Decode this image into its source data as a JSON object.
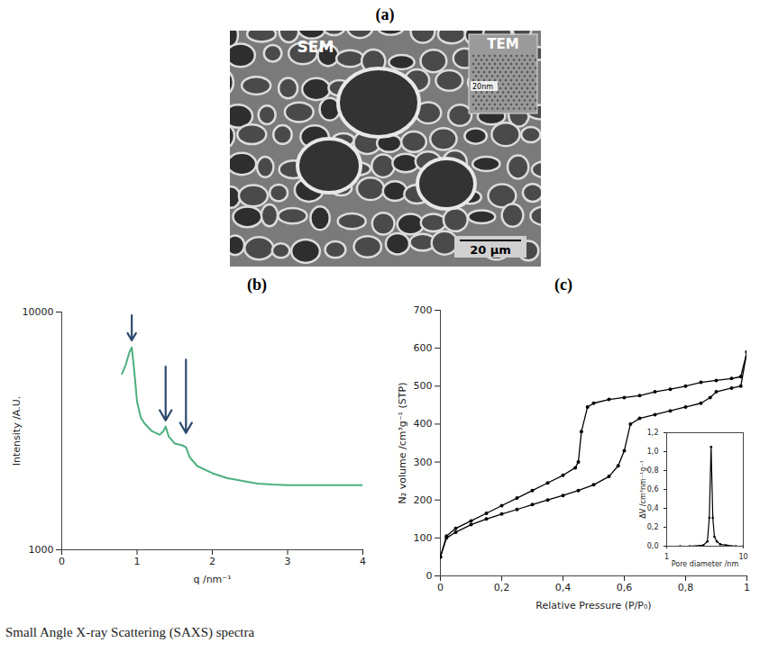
{
  "figure": {
    "image_panel": {
      "panel_label": "(a)",
      "sem_label": "SEM",
      "tem_label": "TEM",
      "scale_bar": "20 μm",
      "tem_scale_bar": "20nm"
    },
    "caption": "Small Angle X-ray Scattering (SAXS) spectra"
  },
  "chart_data": [
    {
      "type": "line",
      "panel_label": "(b)",
      "x_label": "q /nm⁻¹",
      "y_label": "Intensity /A.U.",
      "log": "y",
      "color": "#4caf7d",
      "line_style": "solid",
      "x": [
        0.8,
        0.85,
        0.9,
        0.93,
        0.96,
        1.0,
        1.05,
        1.1,
        1.2,
        1.3,
        1.35,
        1.38,
        1.42,
        1.5,
        1.6,
        1.65,
        1.7,
        1.8,
        2.0,
        2.2,
        2.4,
        2.6,
        2.8,
        3.0,
        3.5,
        4.0
      ],
      "values": [
        5500,
        6000,
        6800,
        7100,
        5800,
        4200,
        3600,
        3400,
        3150,
        3050,
        3150,
        3300,
        3000,
        2800,
        2750,
        2700,
        2450,
        2250,
        2100,
        2000,
        1950,
        1900,
        1880,
        1870,
        1870,
        1870
      ],
      "arrows": [
        {
          "x": 0.93,
          "y_start": 9700,
          "y_end": 7600
        },
        {
          "x": 1.38,
          "y_start": 5900,
          "y_end": 3500
        },
        {
          "x": 1.65,
          "y_start": 6300,
          "y_end": 3100
        }
      ],
      "xlim": [
        0,
        4
      ],
      "xticks": [
        0,
        1,
        2,
        3,
        4
      ],
      "ylim": [
        1000,
        10000
      ],
      "yticks": [
        1000,
        10000
      ],
      "grid": false
    },
    {
      "type": "line",
      "panel_label": "(c)",
      "x_label": "Relative Pressure (P/P₀)",
      "y_label": "N₂ volume /cm³g⁻¹ (STP)",
      "series": [
        {
          "color": "#000000",
          "marker": "circle",
          "line_style": "solid",
          "x": [
            0,
            0.02,
            0.05,
            0.1,
            0.15,
            0.2,
            0.25,
            0.3,
            0.35,
            0.4,
            0.45,
            0.5,
            0.55,
            0.58,
            0.6,
            0.62,
            0.65,
            0.7,
            0.75,
            0.8,
            0.85,
            0.88,
            0.9,
            0.95,
            0.98,
            1.0
          ],
          "values": [
            50,
            100,
            115,
            135,
            150,
            163,
            175,
            188,
            200,
            212,
            225,
            240,
            262,
            290,
            330,
            400,
            415,
            425,
            435,
            445,
            455,
            470,
            485,
            495,
            500,
            590
          ]
        },
        {
          "color": "#000000",
          "marker": "circle",
          "line_style": "solid",
          "x": [
            1.0,
            0.98,
            0.95,
            0.9,
            0.85,
            0.8,
            0.75,
            0.7,
            0.65,
            0.6,
            0.55,
            0.5,
            0.48,
            0.46,
            0.45,
            0.44,
            0.4,
            0.35,
            0.3,
            0.25,
            0.2,
            0.15,
            0.1,
            0.05,
            0.02,
            0
          ],
          "values": [
            590,
            525,
            520,
            515,
            510,
            500,
            492,
            485,
            475,
            470,
            465,
            455,
            445,
            380,
            300,
            285,
            265,
            245,
            225,
            205,
            185,
            165,
            145,
            125,
            105,
            50
          ]
        }
      ],
      "xlim": [
        0,
        1
      ],
      "xticks": [
        0,
        {
          "value": 0.2,
          "label": "0,2"
        },
        {
          "value": 0.4,
          "label": "0,4"
        },
        {
          "value": 0.6,
          "label": "0,6"
        },
        {
          "value": 0.8,
          "label": "0,8"
        },
        1
      ],
      "ylim": [
        0,
        700
      ],
      "yticks": [
        0,
        100,
        200,
        300,
        400,
        500,
        600,
        700
      ],
      "grid": false,
      "inset": {
        "type": "line",
        "x_label": "Pore diameter /nm",
        "y_label": "ΔV /cm³nm⁻¹g⁻¹",
        "log": "x",
        "color": "#000000",
        "marker": "circle",
        "line_style": "solid",
        "x": [
          1.5,
          2,
          3,
          3.4,
          3.6,
          3.8,
          4.0,
          4.2,
          4.5,
          5,
          6,
          8,
          10
        ],
        "values": [
          0,
          0,
          0.01,
          0.05,
          0.3,
          1.05,
          0.3,
          0.1,
          0.05,
          0.02,
          0.01,
          0,
          0
        ],
        "xlim": [
          1,
          10
        ],
        "xticks": [
          1,
          10
        ],
        "ylim": [
          0,
          1.2
        ],
        "yticks": [
          {
            "value": 0,
            "label": "0,0"
          },
          {
            "value": 0.2,
            "label": "0,2"
          },
          {
            "value": 0.4,
            "label": "0,4"
          },
          {
            "value": 0.6,
            "label": "0,6"
          },
          {
            "value": 0.8,
            "label": "0,8"
          },
          {
            "value": 1.0,
            "label": "1,0"
          },
          {
            "value": 1.2,
            "label": "1,2"
          }
        ]
      }
    }
  ]
}
